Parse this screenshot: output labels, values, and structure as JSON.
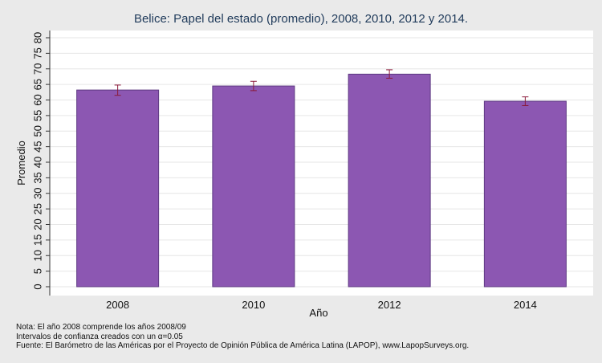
{
  "chart_data": {
    "type": "bar",
    "title": "Belice: Papel del estado (promedio), 2008, 2010, 2012 y 2014.",
    "xlabel": "Año",
    "ylabel": "Promedio",
    "categories": [
      "2008",
      "2010",
      "2012",
      "2014"
    ],
    "values": [
      63.2,
      64.5,
      68.3,
      59.6
    ],
    "ci_lower": [
      61.5,
      63.0,
      67.0,
      58.2
    ],
    "ci_upper": [
      64.8,
      66.0,
      69.7,
      61.0
    ],
    "ylim": [
      0,
      80
    ],
    "yticks": [
      0,
      5,
      10,
      15,
      20,
      25,
      30,
      35,
      40,
      45,
      50,
      55,
      60,
      65,
      70,
      75,
      80
    ],
    "grid": true,
    "colors": {
      "bar": "#8c57b2",
      "bar_edge": "#5e3a82",
      "error_bar": "#8b1a3a",
      "plot_background": "#ffffff",
      "page_background": "#eaeaea",
      "grid": "#e6e6e6"
    }
  },
  "notes": [
    "Nota: El año 2008 comprende los años 2008/09",
    "Intervalos de confianza creados con un α=0.05",
    "Fuente: El Barómetro de las Américas por el Proyecto de Opinión Pública de América Latina (LAPOP), www.LapopSurveys.org."
  ]
}
